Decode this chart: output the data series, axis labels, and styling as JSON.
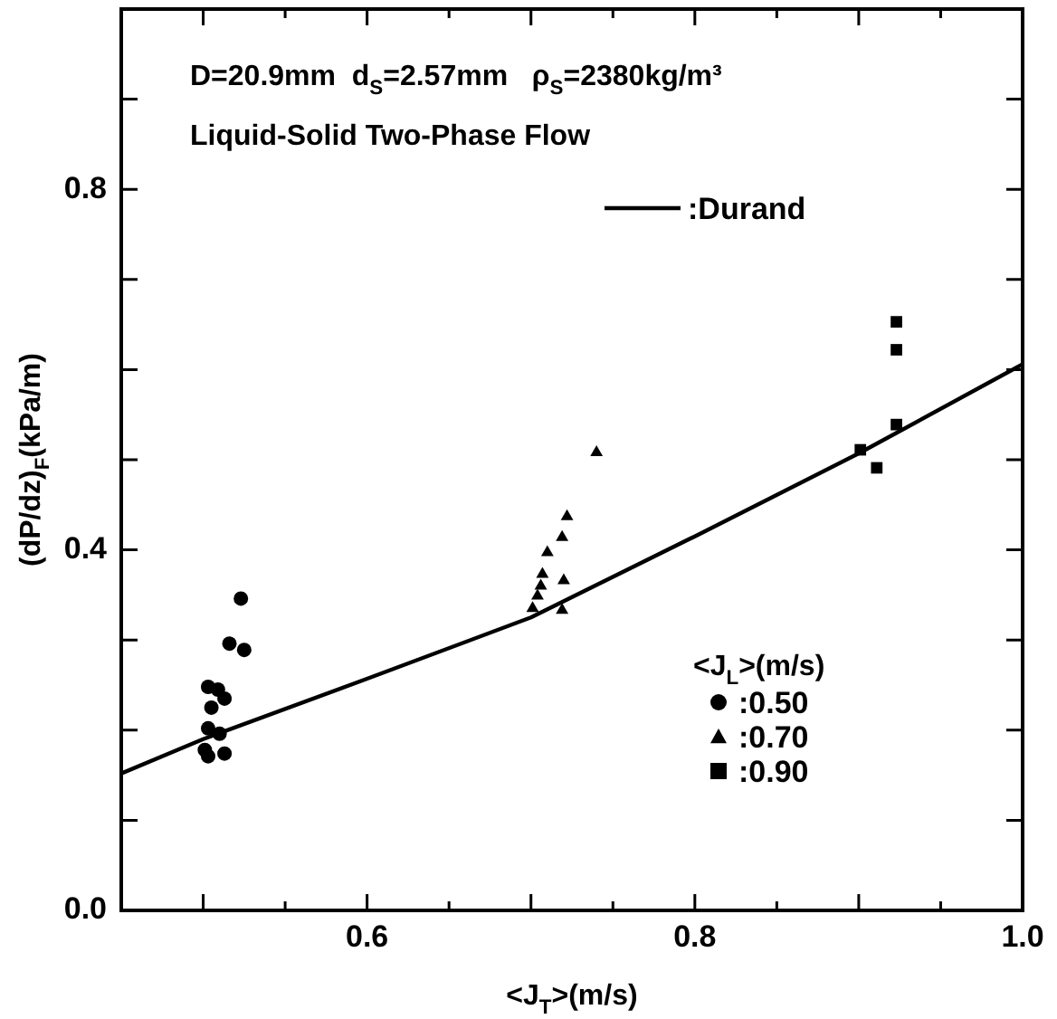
{
  "chart_data": {
    "type": "scatter",
    "annotations": [
      "D=20.9mm  d$_{S}$=2.57mm   ρ$_{S}$=2380kg/m³",
      "Liquid-Solid Two-Phase Flow"
    ],
    "xlabel": "<J$_{T}$>(m/s)",
    "ylabel": "(dP/dz)$_{F}$(kPa/m)",
    "legend_title": "<J$_{L}$>(m/s)",
    "legend": "bottom right",
    "grid": false,
    "xlim": [
      0.45,
      1.0
    ],
    "xticks": [
      {
        "value": 0.5,
        "label": null
      },
      {
        "value": 0.55,
        "label": null
      },
      0.6,
      {
        "value": 0.65,
        "label": null
      },
      {
        "value": 0.7,
        "label": null
      },
      {
        "value": 0.75,
        "label": null
      },
      0.8,
      {
        "value": 0.85,
        "label": null
      },
      {
        "value": 0.9,
        "label": null
      },
      {
        "value": 0.95,
        "label": null
      },
      {
        "value": 1,
        "label": "1.0"
      }
    ],
    "ylim": [
      0,
      1.0
    ],
    "yticks": [
      {
        "value": 0,
        "label": "0.0"
      },
      {
        "value": 0.1,
        "label": null
      },
      {
        "value": 0.2,
        "label": null
      },
      {
        "value": 0.3,
        "label": null
      },
      0.4,
      {
        "value": 0.5,
        "label": null
      },
      {
        "value": 0.6,
        "label": null
      },
      {
        "value": 0.7,
        "label": null
      },
      0.8,
      {
        "value": 0.9,
        "label": null
      }
    ],
    "series": [
      {
        "name": ":0.50",
        "marker": "circle",
        "color": "#000000",
        "x": [
          0.523,
          0.516,
          0.525,
          0.503,
          0.509,
          0.513,
          0.505,
          0.503,
          0.51,
          0.501,
          0.513,
          0.503
        ],
        "values": [
          0.346,
          0.296,
          0.289,
          0.248,
          0.245,
          0.235,
          0.225,
          0.202,
          0.196,
          0.178,
          0.174,
          0.171
        ]
      },
      {
        "name": ":0.70",
        "marker": "triangle",
        "color": "#000000",
        "x": [
          0.74,
          0.722,
          0.719,
          0.71,
          0.707,
          0.72,
          0.706,
          0.704,
          0.701,
          0.719
        ],
        "values": [
          0.508,
          0.437,
          0.414,
          0.397,
          0.373,
          0.366,
          0.36,
          0.349,
          0.335,
          0.333
        ]
      },
      {
        "name": ":0.90",
        "marker": "square",
        "color": "#000000",
        "x": [
          0.923,
          0.923,
          0.923,
          0.901,
          0.911
        ],
        "values": [
          0.653,
          0.622,
          0.539,
          0.511,
          0.491
        ]
      },
      {
        "name": ":Durand",
        "type": "line",
        "marker": "none",
        "line_style": "solid",
        "color": "#000000",
        "x": [
          0.45,
          0.5,
          0.6,
          0.7,
          0.8,
          0.9,
          1.0
        ],
        "values": [
          0.152,
          0.19,
          0.257,
          0.325,
          0.415,
          0.507,
          0.606
        ]
      }
    ]
  }
}
